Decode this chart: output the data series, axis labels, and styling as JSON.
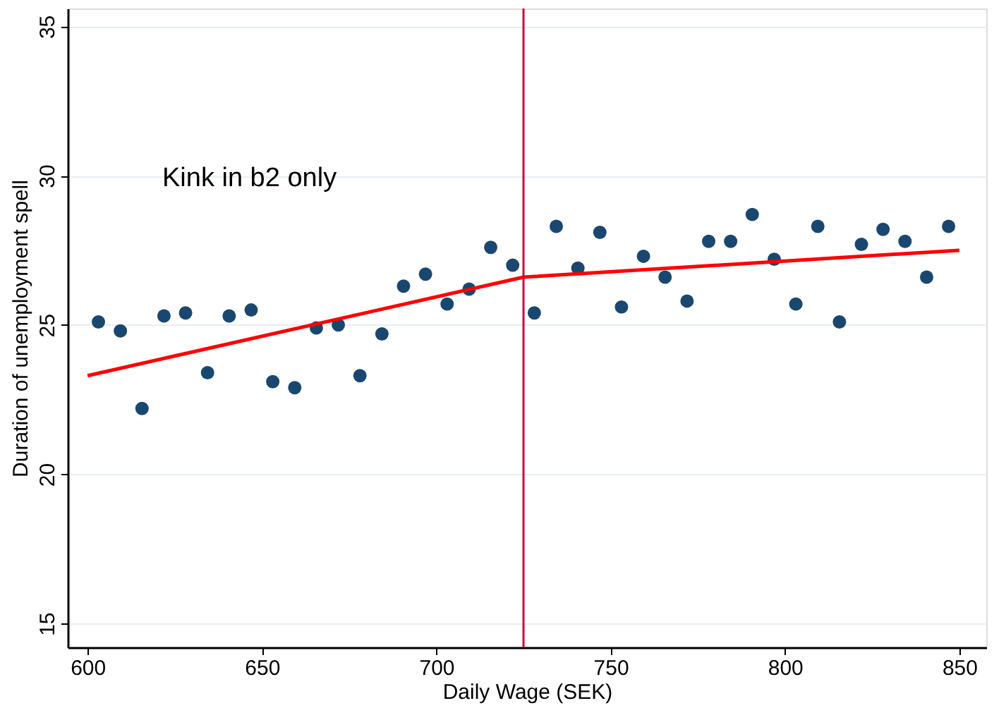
{
  "chart_data": {
    "type": "scatter",
    "xlabel": "Daily Wage (SEK)",
    "ylabel": "Duration of unemployment spell",
    "annotations": [
      "Kink in b2 only"
    ],
    "xlim": [
      594.3,
      857.7
    ],
    "ylim": [
      14.2,
      35.6
    ],
    "xticks": [
      600,
      650,
      700,
      750,
      800,
      850
    ],
    "yticks": [
      15,
      20,
      25,
      30,
      35
    ],
    "grid": "y",
    "series": [
      {
        "marker": "circle",
        "color": "#1a476f",
        "x": [
          603.1,
          609.4,
          615.6,
          621.9,
          628.1,
          634.4,
          640.6,
          646.9,
          653.1,
          659.4,
          665.6,
          671.9,
          678.1,
          684.4,
          690.6,
          696.9,
          703.1,
          709.4,
          715.6,
          721.9,
          728.1,
          734.4,
          740.6,
          746.9,
          753.1,
          759.4,
          765.6,
          771.9,
          778.1,
          784.4,
          790.6,
          796.9,
          803.1,
          809.4,
          815.6,
          821.9,
          828.1,
          834.4,
          840.6,
          846.9
        ],
        "values": [
          25.1,
          24.8,
          22.2,
          25.3,
          25.4,
          23.4,
          25.3,
          25.5,
          23.1,
          22.9,
          24.9,
          25.0,
          23.3,
          24.7,
          26.3,
          26.7,
          25.7,
          26.2,
          27.6,
          27.0,
          25.4,
          28.3,
          26.9,
          28.1,
          25.6,
          27.3,
          26.6,
          25.8,
          27.8,
          27.8,
          28.7,
          27.2,
          25.7,
          28.3,
          25.1,
          27.7,
          28.2,
          27.8,
          26.6,
          28.3
        ]
      },
      {
        "type": "line",
        "color": "#ff0000",
        "x": [
          600,
          725,
          850
        ],
        "values": [
          23.3,
          26.6,
          27.5
        ]
      }
    ],
    "ref_lines": [
      {
        "axis": "x",
        "value": 725,
        "color": "#c4113a"
      }
    ]
  }
}
